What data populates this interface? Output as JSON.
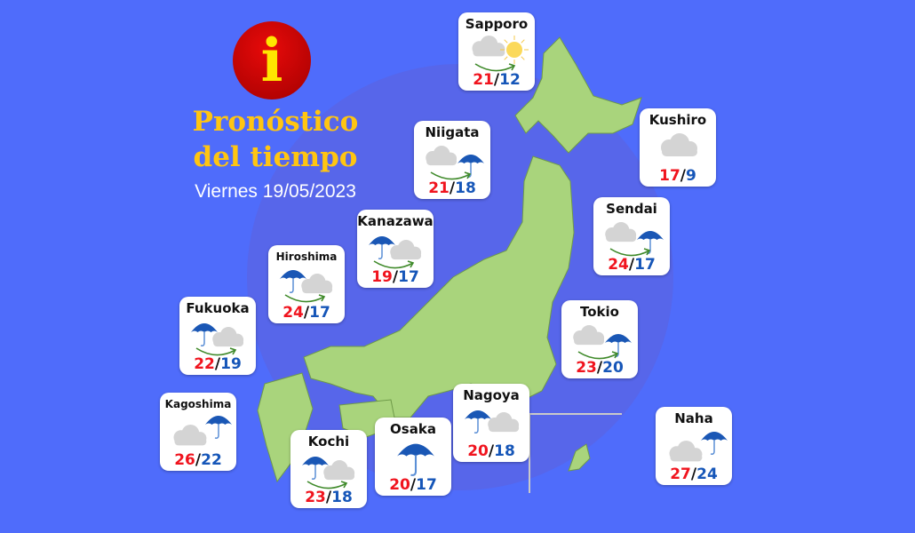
{
  "header": {
    "title_line1": "Pronóstico",
    "title_line2": "del tiempo",
    "date": "Viernes 19/05/2023",
    "info_glyph": "i"
  },
  "colors": {
    "background": "#4f6cfb",
    "land": "#a9d47c",
    "max_temp": "#f0141e",
    "min_temp": "#1656b8",
    "title": "#ffc512"
  },
  "cities": [
    {
      "name": "Sapporo",
      "icon": "cloud-to-sun",
      "max": "21",
      "min": "12"
    },
    {
      "name": "Niigata",
      "icon": "cloud-to-rain",
      "max": "21",
      "min": "18"
    },
    {
      "name": "Kanazawa",
      "icon": "rain-to-cloud",
      "max": "19",
      "min": "17"
    },
    {
      "name": "Hiroshima",
      "icon": "rain-to-cloud",
      "max": "24",
      "min": "17"
    },
    {
      "name": "Fukuoka",
      "icon": "rain-to-cloud",
      "max": "22",
      "min": "19"
    },
    {
      "name": "Kagoshima",
      "icon": "cloud-and-rain",
      "max": "26",
      "min": "22"
    },
    {
      "name": "Kochi",
      "icon": "rain-to-cloud",
      "max": "23",
      "min": "18"
    },
    {
      "name": "Osaka",
      "icon": "rain",
      "max": "20",
      "min": "17"
    },
    {
      "name": "Nagoya",
      "icon": "rain-and-cloud",
      "max": "20",
      "min": "18"
    },
    {
      "name": "Tokio",
      "icon": "cloud-to-rain",
      "max": "23",
      "min": "20"
    },
    {
      "name": "Sendai",
      "icon": "cloud-to-rain",
      "max": "24",
      "min": "17"
    },
    {
      "name": "Kushiro",
      "icon": "cloud",
      "max": "17",
      "min": "9"
    },
    {
      "name": "Naha",
      "icon": "cloud-and-rain",
      "max": "27",
      "min": "24"
    }
  ]
}
